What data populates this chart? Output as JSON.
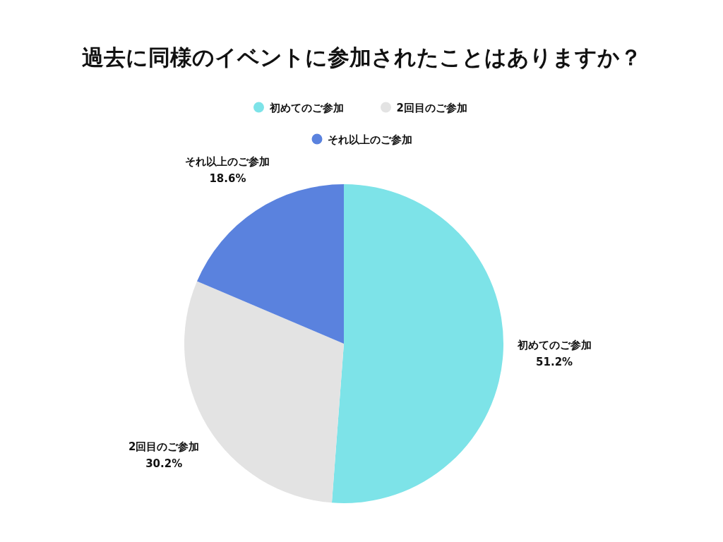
{
  "chart_data": {
    "type": "pie",
    "title": "過去に同様のイベントに参加されたことはありますか？",
    "categories": [
      "初めてのご参加",
      "2回目のご参加",
      "それ以上のご参加"
    ],
    "values": [
      51.2,
      30.2,
      18.6
    ],
    "colors": [
      "#7de3e8",
      "#e3e3e3",
      "#5a82de"
    ],
    "value_labels": [
      "51.2%",
      "30.2%",
      "18.6%"
    ],
    "legend": "top"
  }
}
